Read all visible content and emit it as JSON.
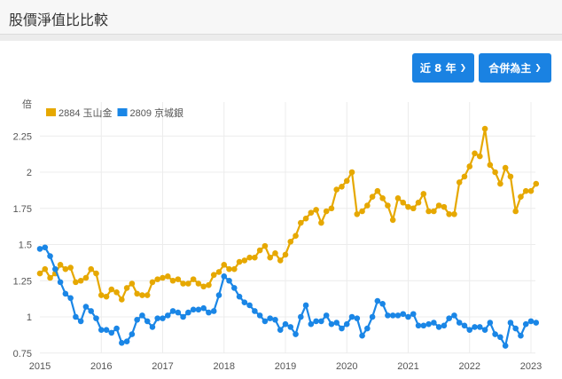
{
  "header": {
    "title": "股價淨值比比較"
  },
  "controls": {
    "range_label": "近 8 年",
    "basis_label": "合併為主",
    "chevron_icon": "chevron-down-icon"
  },
  "chart_data": {
    "type": "line",
    "title": "股價淨值比比較",
    "ylabel": "倍",
    "xlabel": "",
    "ylim": [
      0.75,
      2.35
    ],
    "yticks": [
      "0.75",
      "1",
      "1.25",
      "1.5",
      "1.75",
      "2",
      "2.25"
    ],
    "xticks": [
      "2015",
      "2016",
      "2017",
      "2018",
      "2019",
      "2020",
      "2021",
      "2022",
      "2023"
    ],
    "xlim": [
      2015.0,
      2023.1
    ],
    "grid": true,
    "legend_position": "top-left",
    "series": [
      {
        "name": "2884 玉山金",
        "color": "#e6a800",
        "values": [
          1.3,
          1.33,
          1.27,
          1.3,
          1.36,
          1.33,
          1.34,
          1.24,
          1.25,
          1.27,
          1.33,
          1.3,
          1.15,
          1.14,
          1.19,
          1.17,
          1.12,
          1.2,
          1.23,
          1.16,
          1.15,
          1.15,
          1.24,
          1.26,
          1.27,
          1.28,
          1.25,
          1.26,
          1.23,
          1.23,
          1.26,
          1.23,
          1.21,
          1.22,
          1.29,
          1.31,
          1.36,
          1.33,
          1.33,
          1.38,
          1.39,
          1.41,
          1.41,
          1.46,
          1.49,
          1.41,
          1.44,
          1.39,
          1.43,
          1.52,
          1.56,
          1.65,
          1.68,
          1.72,
          1.74,
          1.65,
          1.73,
          1.75,
          1.88,
          1.9,
          1.94,
          2.0,
          1.71,
          1.73,
          1.77,
          1.83,
          1.87,
          1.82,
          1.77,
          1.67,
          1.82,
          1.79,
          1.76,
          1.75,
          1.79,
          1.85,
          1.73,
          1.73,
          1.77,
          1.76,
          1.71,
          1.71,
          1.93,
          1.97,
          2.04,
          2.13,
          2.11,
          2.3,
          2.05,
          2.0,
          1.92,
          2.03,
          1.97,
          1.73,
          1.83,
          1.87,
          1.87,
          1.92
        ]
      },
      {
        "name": "2809 京城銀",
        "color": "#1a86e6",
        "values": [
          1.47,
          1.48,
          1.42,
          1.33,
          1.24,
          1.16,
          1.13,
          1.0,
          0.97,
          1.07,
          1.04,
          0.99,
          0.91,
          0.91,
          0.89,
          0.92,
          0.82,
          0.83,
          0.88,
          0.98,
          1.01,
          0.97,
          0.93,
          0.99,
          0.99,
          1.01,
          1.04,
          1.03,
          1.0,
          1.03,
          1.05,
          1.05,
          1.06,
          1.03,
          1.04,
          1.15,
          1.28,
          1.25,
          1.2,
          1.14,
          1.1,
          1.08,
          1.04,
          1.01,
          0.97,
          0.99,
          0.98,
          0.91,
          0.95,
          0.93,
          0.88,
          1.0,
          1.08,
          0.95,
          0.97,
          0.97,
          1.01,
          0.95,
          0.96,
          0.92,
          0.95,
          1.0,
          0.99,
          0.87,
          0.92,
          1.0,
          1.11,
          1.09,
          1.01,
          1.01,
          1.01,
          1.02,
          1.0,
          1.02,
          0.94,
          0.94,
          0.95,
          0.96,
          0.93,
          0.94,
          0.99,
          1.01,
          0.96,
          0.94,
          0.91,
          0.93,
          0.93,
          0.91,
          0.96,
          0.88,
          0.86,
          0.8,
          0.96,
          0.92,
          0.87,
          0.95,
          0.97,
          0.96
        ]
      }
    ],
    "start": "2015-01",
    "frequency": "monthly"
  }
}
